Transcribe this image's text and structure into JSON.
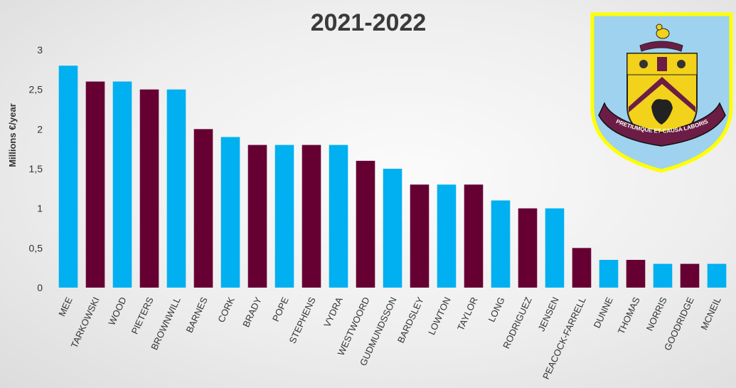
{
  "chart_data": {
    "type": "bar",
    "title": "2021-2022",
    "ylabel": "Millions €/year",
    "ylim": [
      0,
      3
    ],
    "yticks": [
      "0",
      "0,5",
      "1",
      "1,5",
      "2",
      "2,5",
      "3"
    ],
    "categories": [
      "MEE",
      "TARKOWSKI",
      "WOOD",
      "PIETERS",
      "BROWNWILL",
      "BARNES",
      "CORK",
      "BRADY",
      "POPE",
      "STEPHENS",
      "VYDRA",
      "WESTWOORD",
      "GUDMUNDSSON",
      "BARDSLEY",
      "LOWTON",
      "TAYLOR",
      "LONG",
      "RODRIGUEZ",
      "JENSEN",
      "PEACOCK-FARRELL",
      "DUNNE",
      "THOMAS",
      "NORRIS",
      "GOODRIDGE",
      "MCNEIL"
    ],
    "values": [
      2.8,
      2.6,
      2.6,
      2.5,
      2.5,
      2.0,
      1.9,
      1.8,
      1.8,
      1.8,
      1.8,
      1.6,
      1.5,
      1.3,
      1.3,
      1.3,
      1.1,
      1.0,
      1.0,
      0.5,
      0.35,
      0.35,
      0.3,
      0.3,
      0.3
    ],
    "bar_colors": [
      "#00b0f0",
      "#660033",
      "#00b0f0",
      "#660033",
      "#00b0f0",
      "#660033",
      "#00b0f0",
      "#660033",
      "#00b0f0",
      "#660033",
      "#00b0f0",
      "#660033",
      "#00b0f0",
      "#660033",
      "#00b0f0",
      "#660033",
      "#00b0f0",
      "#660033",
      "#00b0f0",
      "#660033",
      "#00b0f0",
      "#660033",
      "#00b0f0",
      "#660033",
      "#00b0f0"
    ],
    "grid": false,
    "legend": "none"
  },
  "crest": {
    "motto": "PRETIUMQUE ET CAUSA LABORIS",
    "colors": {
      "outline": "#ffff00",
      "sky": "#9fd2ee",
      "claret": "#6c1d45",
      "gold": "#f2d21a"
    }
  }
}
